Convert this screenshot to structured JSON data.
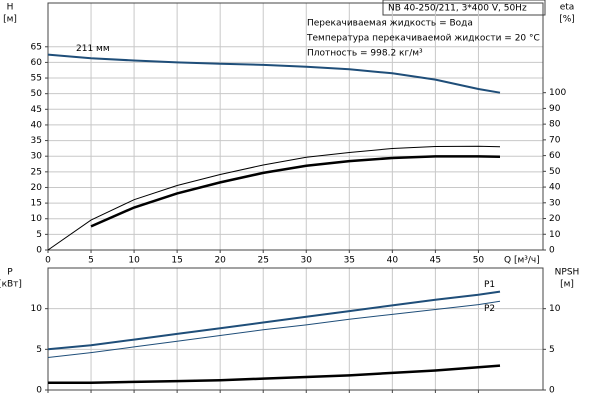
{
  "chart_data": [
    {
      "type": "line",
      "title": "NB 40-250/211, 3*400 V, 50Hz",
      "annotations": [
        "Перекачиваемая жидкость = Вода",
        "Температура перекачиваемой жидкости = 20 °C",
        "Плотность = 998.2 кг/м³"
      ],
      "ylabel": [
        "H",
        "[м]"
      ],
      "y2label": [
        "eta",
        "[%]"
      ],
      "xlabel": "Q [м³/ч]",
      "x": [
        0,
        5,
        10,
        15,
        20,
        25,
        30,
        35,
        40,
        45,
        50,
        52.5
      ],
      "xlim": [
        0,
        57.5
      ],
      "xticks": [
        0,
        5,
        10,
        15,
        20,
        25,
        30,
        35,
        40,
        45,
        50
      ],
      "ylim": [
        0,
        79
      ],
      "yticks": [
        0,
        5,
        10,
        15,
        20,
        25,
        30,
        35,
        40,
        45,
        50,
        55,
        60,
        65
      ],
      "y2lim": [
        0,
        157
      ],
      "y2ticks": [
        0,
        10,
        20,
        30,
        40,
        50,
        60,
        70,
        80,
        90,
        100
      ],
      "grid": true,
      "series": [
        {
          "name": "211 мм",
          "color": "#1f4e79",
          "width": 2,
          "values": [
            62.5,
            61.3,
            60.6,
            60.0,
            59.6,
            59.2,
            58.6,
            57.8,
            56.5,
            54.5,
            51.5,
            50.3
          ]
        },
        {
          "color": "#000000",
          "width": 1,
          "axis": "y2",
          "values": [
            0,
            19,
            32,
            41,
            48,
            54,
            59,
            62,
            64.5,
            65.8,
            66,
            65.6
          ]
        },
        {
          "color": "#000000",
          "width": 2.5,
          "axis": "y2",
          "values": [
            null,
            15,
            27,
            36,
            43,
            49,
            53.5,
            56.5,
            58.5,
            59.5,
            59.5,
            59.3
          ]
        }
      ]
    },
    {
      "type": "line",
      "ylabel": [
        "P",
        "[кВт]"
      ],
      "y2label": [
        "NPSH",
        "[м]"
      ],
      "x": [
        0,
        5,
        10,
        15,
        20,
        25,
        30,
        35,
        40,
        45,
        50,
        52.5
      ],
      "xlim": [
        0,
        57.5
      ],
      "xticks": [
        0,
        5,
        10,
        15,
        20,
        25,
        30,
        35,
        40,
        45,
        50
      ],
      "ylim": [
        0,
        15
      ],
      "yticks": [
        0,
        5,
        10
      ],
      "y2lim": [
        0,
        15
      ],
      "y2ticks": [
        0,
        5,
        10
      ],
      "grid": true,
      "series": [
        {
          "name": "P1",
          "color": "#1f4e79",
          "width": 2,
          "values": [
            5.0,
            5.5,
            6.2,
            6.9,
            7.6,
            8.3,
            9.0,
            9.7,
            10.4,
            11.1,
            11.7,
            12.1
          ]
        },
        {
          "name": "P2",
          "color": "#1f4e79",
          "width": 1,
          "values": [
            4.0,
            4.6,
            5.3,
            6.0,
            6.7,
            7.4,
            8.0,
            8.7,
            9.3,
            9.9,
            10.5,
            10.9
          ]
        },
        {
          "color": "#000000",
          "width": 2.5,
          "axis": "y2",
          "values": [
            0.9,
            0.9,
            1.0,
            1.1,
            1.2,
            1.4,
            1.6,
            1.8,
            2.1,
            2.4,
            2.8,
            3.0
          ]
        }
      ]
    }
  ]
}
